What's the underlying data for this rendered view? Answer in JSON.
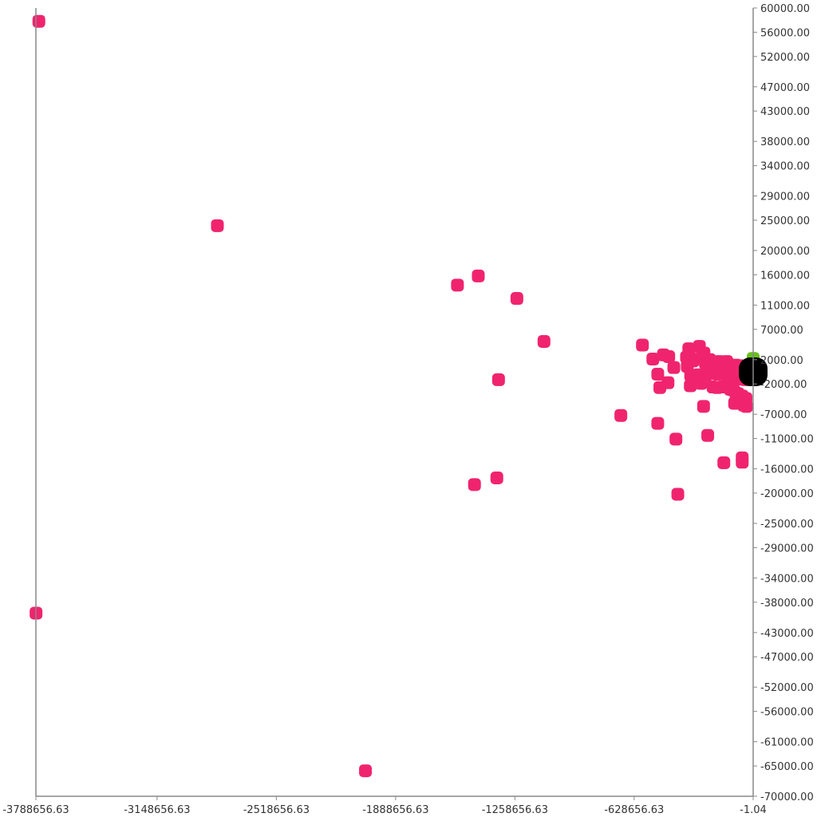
{
  "chart_data": {
    "type": "scatter",
    "title": "",
    "xlabel": "",
    "ylabel": "",
    "xlim": [
      -3788656.63,
      -1.04
    ],
    "ylim": [
      -70000,
      60000
    ],
    "grid": false,
    "x_ticks": [
      {
        "value": -3788656.63,
        "label": "-3788656.63"
      },
      {
        "value": -3148656.63,
        "label": "-3148656.63"
      },
      {
        "value": -2518656.63,
        "label": "-2518656.63"
      },
      {
        "value": -1888656.63,
        "label": "-1888656.63"
      },
      {
        "value": -1258656.63,
        "label": "-1258656.63"
      },
      {
        "value": -628656.63,
        "label": "-628656.63"
      },
      {
        "value": -1.04,
        "label": "-1.04"
      }
    ],
    "y_ticks": [
      {
        "value": 60000,
        "label": "60000.00"
      },
      {
        "value": 56000,
        "label": "56000.00"
      },
      {
        "value": 52000,
        "label": "52000.00"
      },
      {
        "value": 47000,
        "label": "47000.00"
      },
      {
        "value": 43000,
        "label": "43000.00"
      },
      {
        "value": 38000,
        "label": "38000.00"
      },
      {
        "value": 34000,
        "label": "34000.00"
      },
      {
        "value": 29000,
        "label": "29000.00"
      },
      {
        "value": 25000,
        "label": "25000.00"
      },
      {
        "value": 20000,
        "label": "20000.00"
      },
      {
        "value": 16000,
        "label": "16000.00"
      },
      {
        "value": 11000,
        "label": "11000.00"
      },
      {
        "value": 7000,
        "label": "7000.00"
      },
      {
        "value": 2000,
        "label": "2000.00"
      },
      {
        "value": -2000,
        "label": "-2000.00"
      },
      {
        "value": -7000,
        "label": "-7000.00"
      },
      {
        "value": -11000,
        "label": "-11000.00"
      },
      {
        "value": -16000,
        "label": "-16000.00"
      },
      {
        "value": -20000,
        "label": "-20000.00"
      },
      {
        "value": -25000,
        "label": "-25000.00"
      },
      {
        "value": -29000,
        "label": "-29000.00"
      },
      {
        "value": -34000,
        "label": "-34000.00"
      },
      {
        "value": -38000,
        "label": "-38000.00"
      },
      {
        "value": -43000,
        "label": "-43000.00"
      },
      {
        "value": -47000,
        "label": "-47000.00"
      },
      {
        "value": -52000,
        "label": "-52000.00"
      },
      {
        "value": -56000,
        "label": "-56000.00"
      },
      {
        "value": -61000,
        "label": "-61000.00"
      },
      {
        "value": -65000,
        "label": "-65000.00"
      },
      {
        "value": -70000,
        "label": "-70000.00"
      }
    ],
    "series": [
      {
        "color": "#f0246e",
        "points": [
          [
            -3773000,
            57800
          ],
          [
            -3788000,
            -39800
          ],
          [
            -2830000,
            24100
          ],
          [
            -1562000,
            14300
          ],
          [
            -1452000,
            15800
          ],
          [
            -1248000,
            12100
          ],
          [
            -1105000,
            5000
          ],
          [
            -1345000,
            -1300
          ],
          [
            -1472000,
            -18600
          ],
          [
            -1354000,
            -17500
          ],
          [
            -2048000,
            -65800
          ],
          [
            -699000,
            -7200
          ],
          [
            -585000,
            4400
          ],
          [
            -530000,
            2100
          ],
          [
            -474000,
            2800
          ],
          [
            -446000,
            2500
          ],
          [
            -504000,
            -400
          ],
          [
            -419000,
            700
          ],
          [
            -493000,
            -2600
          ],
          [
            -450000,
            -1800
          ],
          [
            -504000,
            -8500
          ],
          [
            -408000,
            -11100
          ],
          [
            -340000,
            3800
          ],
          [
            -338000,
            2700
          ],
          [
            -352000,
            2400
          ],
          [
            -318000,
            1800
          ],
          [
            -348000,
            900
          ],
          [
            -284000,
            4200
          ],
          [
            -260000,
            3100
          ],
          [
            -278000,
            2200
          ],
          [
            -252000,
            1400
          ],
          [
            -230000,
            2000
          ],
          [
            -218000,
            1300
          ],
          [
            -200000,
            1200
          ],
          [
            -180000,
            1700
          ],
          [
            -160000,
            1600
          ],
          [
            -140000,
            1700
          ],
          [
            -128000,
            1200
          ],
          [
            -110000,
            900
          ],
          [
            -92000,
            1100
          ],
          [
            -72000,
            1000
          ],
          [
            -55000,
            600
          ],
          [
            -40000,
            400
          ],
          [
            -235000,
            -200
          ],
          [
            -212000,
            -300
          ],
          [
            -190000,
            -400
          ],
          [
            -168000,
            -200
          ],
          [
            -150000,
            -300
          ],
          [
            -130000,
            -500
          ],
          [
            -112000,
            -800
          ],
          [
            -95000,
            -900
          ],
          [
            -78000,
            -1100
          ],
          [
            -60000,
            -1200
          ],
          [
            -42000,
            -1300
          ],
          [
            -330000,
            -600
          ],
          [
            -290000,
            -500
          ],
          [
            -270000,
            -700
          ],
          [
            -250000,
            -600
          ],
          [
            -332000,
            -2300
          ],
          [
            -275000,
            -1900
          ],
          [
            -212000,
            -2500
          ],
          [
            -190000,
            -2600
          ],
          [
            -165000,
            -2500
          ],
          [
            -142000,
            -2200
          ],
          [
            -120000,
            -2900
          ],
          [
            -102000,
            -3100
          ],
          [
            -80000,
            -3600
          ],
          [
            -58000,
            -4000
          ],
          [
            -38000,
            -4400
          ],
          [
            -90000,
            -4700
          ],
          [
            -70000,
            -5100
          ],
          [
            -50000,
            -5500
          ],
          [
            -36000,
            -5700
          ],
          [
            -98000,
            -5200
          ],
          [
            -262000,
            -5700
          ],
          [
            -240000,
            -10500
          ],
          [
            -155000,
            -15000
          ],
          [
            -58000,
            -14200
          ],
          [
            -58000,
            -14900
          ],
          [
            -398000,
            -20200
          ]
        ]
      },
      {
        "color": "#6abf1e",
        "points": [
          [
            -1.04,
            2200
          ]
        ]
      },
      {
        "color": "#000000",
        "points": [
          [
            -1.04,
            0
          ]
        ]
      }
    ]
  }
}
